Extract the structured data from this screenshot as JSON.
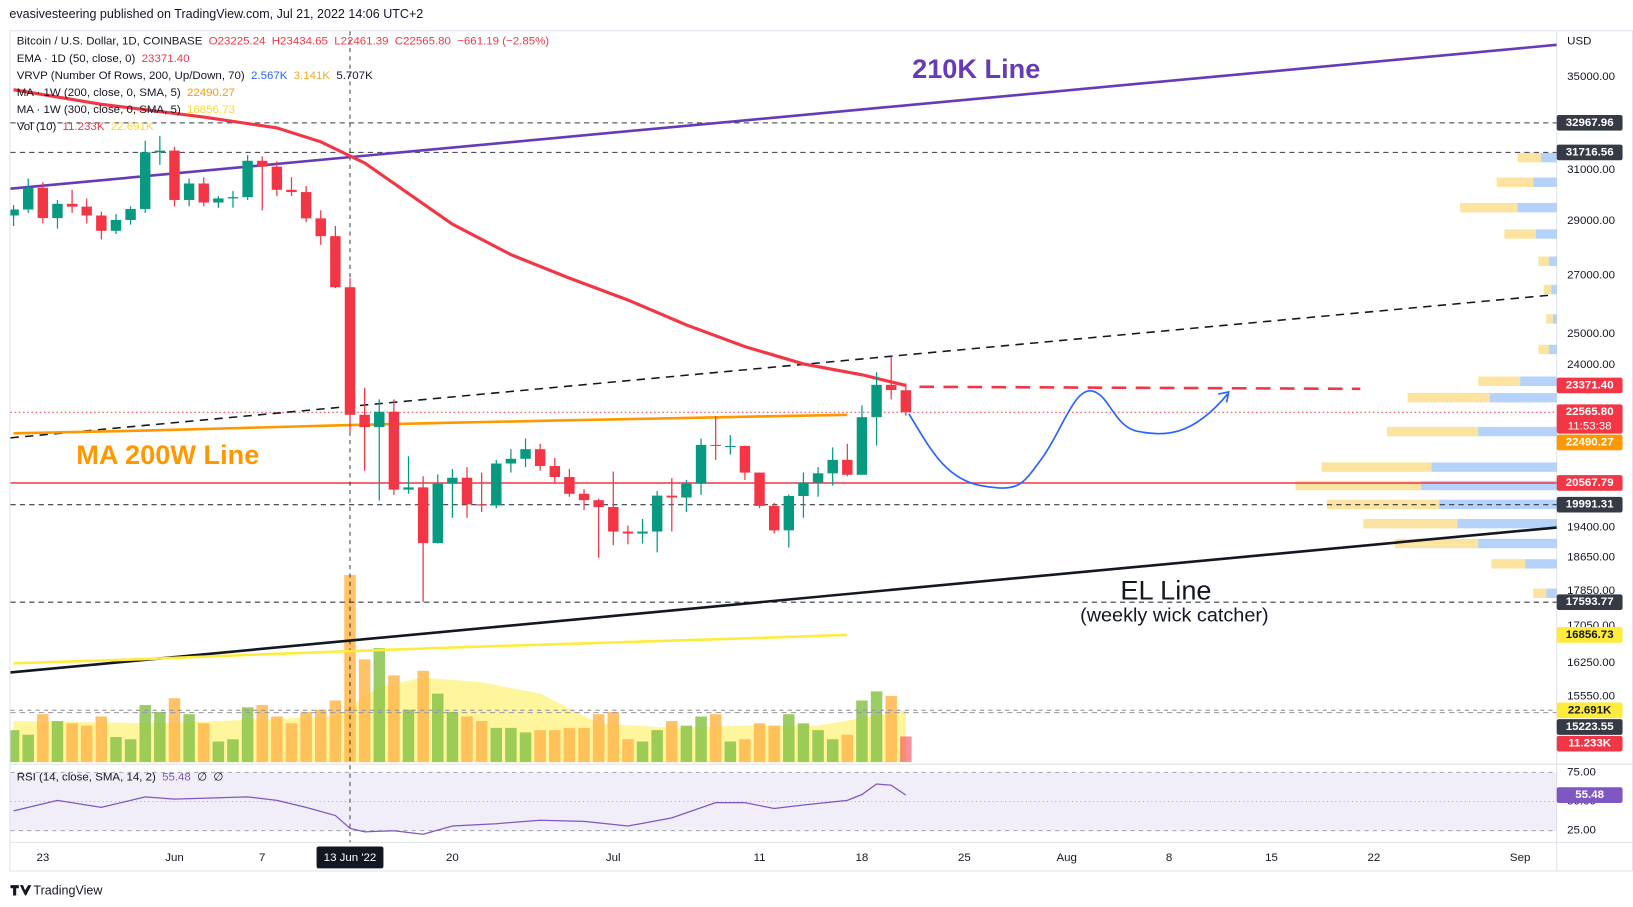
{
  "header": {
    "credit": "evasivesteering published on TradingView.com, Jul 21, 2022 14:06 UTC+2"
  },
  "footer": {
    "brand": "TradingView"
  },
  "chart_data": {
    "type": "candlestick",
    "currency": "USD",
    "log_scale": true,
    "grid": false,
    "up_color": "#089981",
    "down_color": "#f23645",
    "legend": [
      [
        {
          "text": "Bitcoin / U.S. Dollar, 1D, COINBASE",
          "color": "#131722"
        },
        {
          "text": "O23225.24",
          "color": "#f23645"
        },
        {
          "text": "H23434.65",
          "color": "#f23645"
        },
        {
          "text": "L22461.39",
          "color": "#f23645"
        },
        {
          "text": "C22565.80",
          "color": "#f23645"
        },
        {
          "text": "−661.19 (−2.85%)",
          "color": "#f23645"
        }
      ],
      [
        {
          "text": "EMA · 1D (50, close, 0)",
          "color": "#131722"
        },
        {
          "text": "23371.40",
          "color": "#f23645"
        }
      ],
      [
        {
          "text": "VRVP (Number Of Rows, 200, Up/Down, 70)",
          "color": "#131722"
        },
        {
          "text": "2.567K",
          "color": "#2962ff"
        },
        {
          "text": "3.141K",
          "color": "#f9a825"
        },
        {
          "text": "5.707K",
          "color": "#131722"
        }
      ],
      [
        {
          "text": "MA · 1W (200, close, 0, SMA, 5)",
          "color": "#131722"
        },
        {
          "text": "22490.27",
          "color": "#ff9800"
        }
      ],
      [
        {
          "text": "MA · 1W (300, close, 0, SMA, 5)",
          "color": "#131722"
        },
        {
          "text": "16856.73",
          "color": "#fdd835"
        }
      ],
      [
        {
          "text": "Vol (10)",
          "color": "#131722"
        },
        {
          "text": "11.233K",
          "color": "#f23645"
        },
        {
          "text": "22.691K",
          "color": "#fdd835"
        }
      ]
    ],
    "xlim": [
      "2022-05-21",
      "2022-09-04"
    ],
    "xticks": [
      {
        "value": "2022-05-23",
        "label": "23"
      },
      {
        "value": "2022-06-01",
        "label": "Jun"
      },
      {
        "value": "2022-06-07",
        "label": "7"
      },
      {
        "value": "2022-06-20",
        "label": "20"
      },
      {
        "value": "2022-07-01",
        "label": "Jul"
      },
      {
        "value": "2022-07-11",
        "label": "11"
      },
      {
        "value": "2022-07-18",
        "label": "18"
      },
      {
        "value": "2022-07-25",
        "label": "25"
      },
      {
        "value": "2022-08-01",
        "label": "Aug"
      },
      {
        "value": "2022-08-08",
        "label": "8"
      },
      {
        "value": "2022-08-15",
        "label": "15"
      },
      {
        "value": "2022-08-22",
        "label": "22"
      },
      {
        "value": "2022-09-01",
        "label": "Sep"
      }
    ],
    "crosshair": {
      "x": "2022-06-13",
      "label": "13 Jun '22"
    },
    "ylim": [
      14230,
      37170
    ],
    "yticks": [
      {
        "value": 35000,
        "label": "35000.00"
      },
      {
        "value": 31000,
        "label": "31000.00"
      },
      {
        "value": 29000,
        "label": "29000.00"
      },
      {
        "value": 27000,
        "label": "27000.00"
      },
      {
        "value": 25000,
        "label": "25000.00"
      },
      {
        "value": 24000,
        "label": "24000.00"
      },
      {
        "value": 19400,
        "label": "19400.00"
      },
      {
        "value": 18650,
        "label": "18650.00"
      },
      {
        "value": 17850,
        "label": "17850.00"
      },
      {
        "value": 17050,
        "label": "17050.00"
      },
      {
        "value": 16250,
        "label": "16250.00"
      },
      {
        "value": 15550,
        "label": "15550.00"
      }
    ],
    "x": [
      "2022-05-21",
      "2022-05-22",
      "2022-05-23",
      "2022-05-24",
      "2022-05-25",
      "2022-05-26",
      "2022-05-27",
      "2022-05-28",
      "2022-05-29",
      "2022-05-30",
      "2022-05-31",
      "2022-06-01",
      "2022-06-02",
      "2022-06-03",
      "2022-06-04",
      "2022-06-05",
      "2022-06-06",
      "2022-06-07",
      "2022-06-08",
      "2022-06-09",
      "2022-06-10",
      "2022-06-11",
      "2022-06-12",
      "2022-06-13",
      "2022-06-14",
      "2022-06-15",
      "2022-06-16",
      "2022-06-17",
      "2022-06-18",
      "2022-06-19",
      "2022-06-20",
      "2022-06-21",
      "2022-06-22",
      "2022-06-23",
      "2022-06-24",
      "2022-06-25",
      "2022-06-26",
      "2022-06-27",
      "2022-06-28",
      "2022-06-29",
      "2022-06-30",
      "2022-07-01",
      "2022-07-02",
      "2022-07-03",
      "2022-07-04",
      "2022-07-05",
      "2022-07-06",
      "2022-07-07",
      "2022-07-08",
      "2022-07-09",
      "2022-07-10",
      "2022-07-11",
      "2022-07-12",
      "2022-07-13",
      "2022-07-14",
      "2022-07-15",
      "2022-07-16",
      "2022-07-17",
      "2022-07-18",
      "2022-07-19",
      "2022-07-20",
      "2022-07-21"
    ],
    "open": [
      29200,
      29430,
      30280,
      29100,
      29650,
      29540,
      29200,
      28620,
      29030,
      29450,
      31720,
      31790,
      29800,
      30450,
      29700,
      29860,
      29910,
      31370,
      31130,
      30200,
      30110,
      29090,
      28420,
      26580,
      22490,
      22130,
      22580,
      20390,
      20450,
      19010,
      20550,
      20710,
      20000,
      19970,
      21100,
      21230,
      21500,
      21030,
      20730,
      20280,
      20110,
      19930,
      19300,
      19250,
      19300,
      20230,
      20180,
      20550,
      21620,
      21590,
      21590,
      20850,
      19960,
      19330,
      20220,
      20580,
      20830,
      21200,
      20790,
      22420,
      23390,
      23225.24
    ],
    "high": [
      29600,
      30650,
      30500,
      29800,
      30200,
      29850,
      29350,
      29250,
      29550,
      32200,
      32400,
      31950,
      30650,
      30700,
      29950,
      30150,
      31600,
      31550,
      31350,
      30700,
      30350,
      29400,
      28800,
      26900,
      23300,
      22950,
      22950,
      21300,
      20750,
      20800,
      20950,
      21000,
      20850,
      21200,
      21500,
      21800,
      21650,
      21250,
      20950,
      20400,
      20150,
      20880,
      19450,
      19620,
      20350,
      20700,
      20650,
      21800,
      22450,
      21900,
      21600,
      20850,
      20040,
      20260,
      20850,
      21000,
      21550,
      21650,
      22770,
      23780,
      24270,
      23434.65
    ],
    "low": [
      28800,
      29300,
      28900,
      28700,
      29300,
      28900,
      28300,
      28500,
      28850,
      29300,
      31200,
      29550,
      29550,
      29550,
      29500,
      29500,
      29800,
      29400,
      29950,
      29950,
      28950,
      28100,
      26550,
      22000,
      20900,
      20100,
      20250,
      20280,
      17593.77,
      19000,
      19650,
      19650,
      19800,
      19900,
      20850,
      21000,
      20900,
      20550,
      20200,
      19850,
      18650,
      18960,
      18980,
      19000,
      18780,
      19300,
      19800,
      20250,
      21200,
      21350,
      20650,
      19900,
      19250,
      18900,
      19650,
      20200,
      20500,
      20750,
      20800,
      21600,
      22950,
      22461.39
    ],
    "close": [
      29430,
      30280,
      29100,
      29650,
      29540,
      29200,
      28620,
      29030,
      29450,
      31720,
      31790,
      29800,
      30450,
      29700,
      29860,
      29910,
      31370,
      31130,
      30200,
      30110,
      29090,
      28420,
      26580,
      22490,
      22130,
      22580,
      20390,
      20450,
      19010,
      20550,
      20710,
      20000,
      19970,
      21100,
      21230,
      21500,
      21030,
      20730,
      20280,
      20110,
      19930,
      19300,
      19250,
      19300,
      20230,
      20180,
      20550,
      21620,
      21590,
      21590,
      20850,
      19960,
      19330,
      20220,
      20580,
      20830,
      21200,
      20790,
      22420,
      23390,
      23230,
      22565.8
    ],
    "overlays": [
      {
        "name": "EMA · 1D (50, close, 0)",
        "color": "#f23645",
        "width": 3,
        "x": [
          "2022-05-21",
          "2022-05-27",
          "2022-06-03",
          "2022-06-08",
          "2022-06-11",
          "2022-06-14",
          "2022-06-17",
          "2022-06-20",
          "2022-06-24",
          "2022-06-28",
          "2022-07-02",
          "2022-07-06",
          "2022-07-10",
          "2022-07-14",
          "2022-07-18",
          "2022-07-21"
        ],
        "values": [
          34430,
          33780,
          33220,
          32750,
          32160,
          31280,
          30050,
          28870,
          27740,
          26900,
          26140,
          25300,
          24590,
          24040,
          23700,
          23371.4
        ]
      },
      {
        "name": "MA · 1W (200, close, 0, SMA, 5)",
        "color": "#ff9800",
        "width": 2.5,
        "x": [
          "2022-05-21",
          "2022-05-30",
          "2022-06-06",
          "2022-06-13",
          "2022-06-20",
          "2022-06-27",
          "2022-07-04",
          "2022-07-11",
          "2022-07-17"
        ],
        "values": [
          21950,
          22030,
          22110,
          22190,
          22260,
          22320,
          22380,
          22440,
          22490.27
        ]
      },
      {
        "name": "MA · 1W (300, close, 0, SMA, 5)",
        "color": "#ffeb3b",
        "width": 2.5,
        "x": [
          "2022-05-21",
          "2022-05-30",
          "2022-06-06",
          "2022-06-13",
          "2022-06-20",
          "2022-06-27",
          "2022-07-04",
          "2022-07-11",
          "2022-07-17"
        ],
        "values": [
          16240,
          16330,
          16420,
          16500,
          16580,
          16650,
          16720,
          16790,
          16856.73
        ]
      }
    ],
    "price_labels": [
      {
        "value": 32967.96,
        "bg": "#363a45",
        "fg": "#ffffff",
        "line": "dashed",
        "line_color": "#363a45"
      },
      {
        "value": 31716.56,
        "bg": "#363a45",
        "fg": "#ffffff",
        "line": "dashed",
        "line_color": "#363a45"
      },
      {
        "value": 23371.4,
        "label": "23371.40",
        "bg": "#f23645",
        "fg": "#ffffff"
      },
      {
        "value": 22565.8,
        "label": "22565.80",
        "sublabel": "11:53:38",
        "bg": "#f23645",
        "fg": "#ffffff",
        "line": "dotted",
        "line_color": "#f23645"
      },
      {
        "value": 22490.27,
        "bg": "#ff9800",
        "fg": "#ffffff"
      },
      {
        "value": 20567.79,
        "bg": "#f23645",
        "fg": "#ffffff",
        "line": "solid",
        "line_color": "#f23645"
      },
      {
        "value": 19991.31,
        "bg": "#363a45",
        "fg": "#ffffff",
        "line": "dashed",
        "line_color": "#363a45"
      },
      {
        "value": 17593.77,
        "bg": "#363a45",
        "fg": "#ffffff",
        "line": "dashed",
        "line_color": "#363a45"
      },
      {
        "value": 16856.73,
        "bg": "#ffeb3b",
        "fg": "#131722"
      },
      {
        "value": 15223.55,
        "bg": "#363a45",
        "fg": "#ffffff",
        "line": "dashed",
        "line_color": "#9598a1"
      }
    ],
    "volume": {
      "ylim": [
        0,
        85000
      ],
      "up_color": "#8bc34a",
      "down_color": "#ffb74d",
      "values": [
        14000,
        12000,
        21000,
        18000,
        17000,
        16000,
        20000,
        11000,
        10000,
        25000,
        22000,
        28000,
        21000,
        17000,
        9000,
        10000,
        24000,
        25000,
        20000,
        17000,
        22000,
        23000,
        27000,
        82000,
        45000,
        50000,
        38000,
        23000,
        40000,
        30000,
        22000,
        20000,
        18000,
        15000,
        15000,
        13000,
        14000,
        14000,
        15000,
        15000,
        21000,
        22000,
        10000,
        9000,
        14000,
        18000,
        16000,
        20000,
        21000,
        9000,
        10000,
        17000,
        16000,
        21000,
        17000,
        14000,
        10000,
        12000,
        27000,
        31000,
        29000,
        11233
      ],
      "last_label": "11.233K",
      "last_color": "#f23645",
      "ma": {
        "color": "#ffeb3b",
        "x": [
          "2022-05-21",
          "2022-05-31",
          "2022-06-12",
          "2022-06-15",
          "2022-06-18",
          "2022-06-22",
          "2022-06-26",
          "2022-06-30",
          "2022-07-05",
          "2022-07-10",
          "2022-07-15",
          "2022-07-21"
        ],
        "values": [
          18000,
          17000,
          20000,
          33000,
          37000,
          35000,
          30000,
          17000,
          15000,
          16000,
          16000,
          22691
        ],
        "last_label": "22.691K"
      }
    },
    "volume_profile": {
      "up_color": "#5b9cf6",
      "down_color": "#fbc02d",
      "rows": [
        {
          "price": 31500,
          "up": 600,
          "down": 900
        },
        {
          "price": 30500,
          "up": 900,
          "down": 1400
        },
        {
          "price": 29500,
          "up": 1500,
          "down": 2200
        },
        {
          "price": 28500,
          "up": 800,
          "down": 1200
        },
        {
          "price": 27500,
          "up": 300,
          "down": 400
        },
        {
          "price": 26500,
          "up": 200,
          "down": 300
        },
        {
          "price": 25500,
          "up": 150,
          "down": 250
        },
        {
          "price": 24500,
          "up": 300,
          "down": 400
        },
        {
          "price": 23500,
          "up": 1400,
          "down": 1600
        },
        {
          "price": 23000,
          "up": 2567,
          "down": 3141
        },
        {
          "price": 22000,
          "up": 3000,
          "down": 3500
        },
        {
          "price": 21000,
          "up": 4800,
          "down": 4200
        },
        {
          "price": 20500,
          "up": 5200,
          "down": 4800
        },
        {
          "price": 20000,
          "up": 4500,
          "down": 4300
        },
        {
          "price": 19500,
          "up": 3800,
          "down": 3600
        },
        {
          "price": 19000,
          "up": 3000,
          "down": 3200
        },
        {
          "price": 18500,
          "up": 1200,
          "down": 1300
        },
        {
          "price": 17800,
          "up": 400,
          "down": 500
        }
      ]
    },
    "rsi": {
      "color": "#7e57c2",
      "legend": [
        {
          "text": "RSI (14, close, SMA, 14, 2)",
          "color": "#131722"
        },
        {
          "text": "55.48",
          "color": "#7e57c2"
        },
        {
          "text": "∅",
          "color": "#131722"
        },
        {
          "text": "∅",
          "color": "#131722"
        }
      ],
      "ylim": [
        15,
        82
      ],
      "yticks": [
        {
          "value": 75,
          "label": "75.00"
        },
        {
          "value": 50,
          "label": "50.00"
        },
        {
          "value": 25,
          "label": "25.00"
        }
      ],
      "x": [
        "2022-05-21",
        "2022-05-24",
        "2022-05-27",
        "2022-05-30",
        "2022-06-01",
        "2022-06-06",
        "2022-06-08",
        "2022-06-10",
        "2022-06-12",
        "2022-06-13",
        "2022-06-14",
        "2022-06-16",
        "2022-06-18",
        "2022-06-20",
        "2022-06-23",
        "2022-06-26",
        "2022-06-29",
        "2022-07-02",
        "2022-07-05",
        "2022-07-08",
        "2022-07-10",
        "2022-07-12",
        "2022-07-14",
        "2022-07-17",
        "2022-07-18",
        "2022-07-19",
        "2022-07-20",
        "2022-07-21"
      ],
      "values": [
        42,
        51,
        45,
        54,
        52,
        54,
        51,
        45,
        38,
        27,
        24,
        25,
        22,
        29,
        31,
        34,
        33,
        29,
        36,
        49,
        49,
        44,
        47,
        51,
        56,
        65,
        64,
        55.48
      ],
      "last_label": "55.48"
    },
    "annotations": [
      {
        "text": "210K Line"
      },
      {
        "text": "MA 200W Line"
      },
      {
        "text": "EL Line"
      },
      {
        "text": "(weekly wick catcher)"
      }
    ]
  }
}
